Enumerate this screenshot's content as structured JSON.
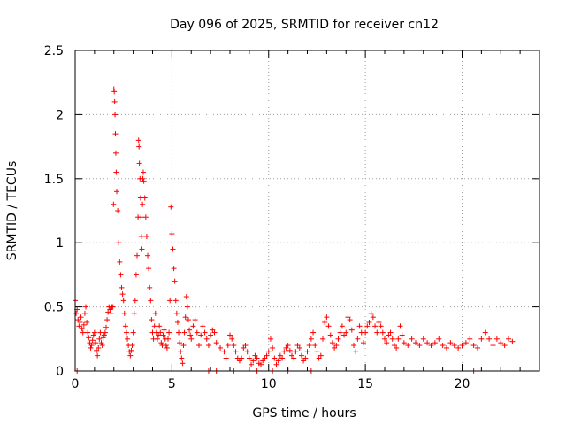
{
  "chart_data": {
    "type": "scatter",
    "title": "Day 096 of 2025, SRMTID for receiver cn12",
    "xlabel": "GPS time / hours",
    "ylabel": "SRMTID / TECUs",
    "xlim": [
      0,
      24
    ],
    "ylim": [
      0,
      2.5
    ],
    "xticks": [
      0,
      5,
      10,
      15,
      20
    ],
    "xtick_labels": [
      "0",
      "5",
      "10",
      "15",
      "20"
    ],
    "yticks": [
      0,
      0.5,
      1,
      1.5,
      2,
      2.5
    ],
    "ytick_labels": [
      "0",
      "0.5",
      "1",
      "1.5",
      "2",
      "2.5"
    ],
    "grid": true,
    "marker": "+",
    "series": [
      {
        "name": "cn12",
        "color": "#ff0000",
        "x": [
          0.0,
          0.05,
          0.1,
          0.15,
          0.2,
          0.25,
          0.3,
          0.35,
          0.4,
          0.45,
          0.5,
          0.55,
          0.6,
          0.65,
          0.7,
          0.75,
          0.8,
          0.85,
          0.9,
          0.95,
          1.0,
          1.05,
          1.1,
          1.15,
          1.2,
          1.25,
          1.3,
          1.35,
          1.4,
          1.45,
          1.5,
          1.55,
          1.6,
          1.65,
          1.7,
          1.75,
          1.8,
          1.85,
          1.9,
          1.95,
          1.98,
          2.0,
          2.02,
          2.04,
          2.06,
          2.08,
          2.1,
          2.12,
          2.15,
          2.2,
          2.25,
          2.3,
          2.35,
          2.4,
          2.45,
          2.5,
          2.55,
          2.6,
          2.65,
          2.7,
          2.75,
          2.8,
          2.85,
          2.9,
          2.95,
          3.0,
          3.05,
          3.1,
          3.15,
          3.2,
          3.25,
          3.28,
          3.3,
          3.32,
          3.35,
          3.38,
          3.4,
          3.42,
          3.45,
          3.48,
          3.5,
          3.52,
          3.55,
          3.6,
          3.65,
          3.7,
          3.75,
          3.8,
          3.85,
          3.9,
          3.95,
          4.0,
          4.05,
          4.1,
          4.15,
          4.2,
          4.25,
          4.3,
          4.35,
          4.4,
          4.45,
          4.5,
          4.55,
          4.6,
          4.65,
          4.7,
          4.75,
          4.8,
          4.85,
          4.9,
          4.95,
          5.0,
          5.05,
          5.1,
          5.15,
          5.2,
          5.25,
          5.3,
          5.35,
          5.4,
          5.45,
          5.5,
          5.55,
          5.6,
          5.65,
          5.7,
          5.75,
          5.8,
          5.85,
          5.9,
          5.95,
          6.0,
          6.1,
          6.2,
          6.3,
          6.4,
          6.5,
          6.6,
          6.7,
          6.8,
          6.9,
          7.0,
          7.1,
          7.2,
          7.3,
          7.5,
          7.7,
          7.8,
          7.9,
          8.0,
          8.1,
          8.2,
          8.3,
          8.4,
          8.5,
          8.6,
          8.7,
          8.8,
          8.9,
          9.0,
          9.1,
          9.2,
          9.3,
          9.4,
          9.5,
          9.6,
          9.7,
          9.8,
          9.9,
          10.0,
          10.1,
          10.2,
          10.3,
          10.4,
          10.5,
          10.6,
          10.7,
          10.8,
          10.9,
          11.0,
          11.1,
          11.2,
          11.3,
          11.4,
          11.5,
          11.6,
          11.7,
          11.8,
          11.9,
          12.0,
          12.1,
          12.2,
          12.3,
          12.4,
          12.5,
          12.6,
          12.7,
          12.8,
          12.9,
          13.0,
          13.1,
          13.2,
          13.3,
          13.4,
          13.5,
          13.6,
          13.7,
          13.8,
          13.9,
          14.0,
          14.1,
          14.2,
          14.3,
          14.4,
          14.5,
          14.6,
          14.7,
          14.8,
          14.9,
          15.0,
          15.1,
          15.2,
          15.3,
          15.4,
          15.5,
          15.6,
          15.7,
          15.8,
          15.9,
          16.0,
          16.1,
          16.2,
          16.3,
          16.4,
          16.5,
          16.6,
          16.7,
          16.8,
          16.9,
          17.0,
          17.2,
          17.4,
          17.6,
          17.8,
          18.0,
          18.2,
          18.4,
          18.6,
          18.8,
          19.0,
          19.2,
          19.4,
          19.6,
          19.8,
          20.0,
          20.2,
          20.4,
          20.6,
          20.8,
          21.0,
          21.2,
          21.4,
          21.6,
          21.8,
          22.0,
          22.2,
          22.4,
          22.6,
          0.1,
          6.9,
          7.3,
          8.2,
          9.4,
          10.2,
          11.0,
          12.2,
          20.6
        ],
        "y": [
          0.55,
          0.45,
          0.48,
          0.4,
          0.35,
          0.38,
          0.42,
          0.33,
          0.3,
          0.36,
          0.45,
          0.5,
          0.38,
          0.3,
          0.26,
          0.22,
          0.18,
          0.2,
          0.24,
          0.28,
          0.3,
          0.22,
          0.16,
          0.12,
          0.18,
          0.25,
          0.3,
          0.22,
          0.2,
          0.26,
          0.28,
          0.3,
          0.34,
          0.4,
          0.46,
          0.5,
          0.48,
          0.45,
          0.5,
          0.5,
          1.3,
          2.2,
          2.18,
          2.1,
          2.0,
          1.85,
          1.7,
          1.55,
          1.4,
          1.25,
          1.0,
          0.85,
          0.75,
          0.65,
          0.6,
          0.55,
          0.45,
          0.35,
          0.3,
          0.25,
          0.2,
          0.15,
          0.12,
          0.16,
          0.2,
          0.3,
          0.45,
          0.55,
          0.75,
          0.9,
          1.2,
          1.8,
          1.75,
          1.62,
          1.5,
          1.35,
          1.2,
          1.05,
          0.95,
          1.3,
          1.5,
          1.55,
          1.48,
          1.35,
          1.2,
          1.05,
          0.9,
          0.8,
          0.65,
          0.55,
          0.4,
          0.3,
          0.25,
          0.35,
          0.45,
          0.3,
          0.25,
          0.28,
          0.35,
          0.3,
          0.22,
          0.2,
          0.28,
          0.32,
          0.25,
          0.2,
          0.18,
          0.25,
          0.3,
          0.55,
          1.28,
          1.07,
          0.95,
          0.8,
          0.7,
          0.55,
          0.45,
          0.38,
          0.3,
          0.22,
          0.15,
          0.1,
          0.06,
          0.2,
          0.3,
          0.42,
          0.58,
          0.5,
          0.4,
          0.32,
          0.28,
          0.25,
          0.35,
          0.4,
          0.3,
          0.2,
          0.28,
          0.35,
          0.3,
          0.25,
          0.2,
          0.28,
          0.32,
          0.3,
          0.22,
          0.18,
          0.15,
          0.1,
          0.2,
          0.28,
          0.25,
          0.2,
          0.15,
          0.1,
          0.08,
          0.1,
          0.18,
          0.2,
          0.15,
          0.1,
          0.05,
          0.08,
          0.12,
          0.1,
          0.06,
          0.05,
          0.08,
          0.1,
          0.12,
          0.15,
          0.25,
          0.18,
          0.1,
          0.05,
          0.08,
          0.12,
          0.1,
          0.15,
          0.18,
          0.2,
          0.16,
          0.12,
          0.1,
          0.15,
          0.2,
          0.18,
          0.12,
          0.08,
          0.1,
          0.15,
          0.2,
          0.25,
          0.3,
          0.2,
          0.15,
          0.1,
          0.12,
          0.25,
          0.38,
          0.42,
          0.35,
          0.28,
          0.22,
          0.18,
          0.2,
          0.25,
          0.3,
          0.35,
          0.28,
          0.3,
          0.42,
          0.4,
          0.32,
          0.2,
          0.15,
          0.25,
          0.35,
          0.3,
          0.22,
          0.3,
          0.35,
          0.38,
          0.45,
          0.42,
          0.35,
          0.3,
          0.38,
          0.35,
          0.3,
          0.25,
          0.22,
          0.28,
          0.3,
          0.25,
          0.2,
          0.18,
          0.25,
          0.35,
          0.28,
          0.22,
          0.2,
          0.25,
          0.22,
          0.2,
          0.25,
          0.22,
          0.2,
          0.22,
          0.25,
          0.2,
          0.18,
          0.22,
          0.2,
          0.18,
          0.2,
          0.22,
          0.25,
          0.2,
          0.18,
          0.25,
          0.3,
          0.25,
          0.2,
          0.25,
          0.22,
          0.2,
          0.25,
          0.23,
          0.0,
          0.0,
          0.0,
          0.0,
          0.0,
          0.0,
          0.0,
          0.0,
          0.0
        ]
      }
    ]
  }
}
